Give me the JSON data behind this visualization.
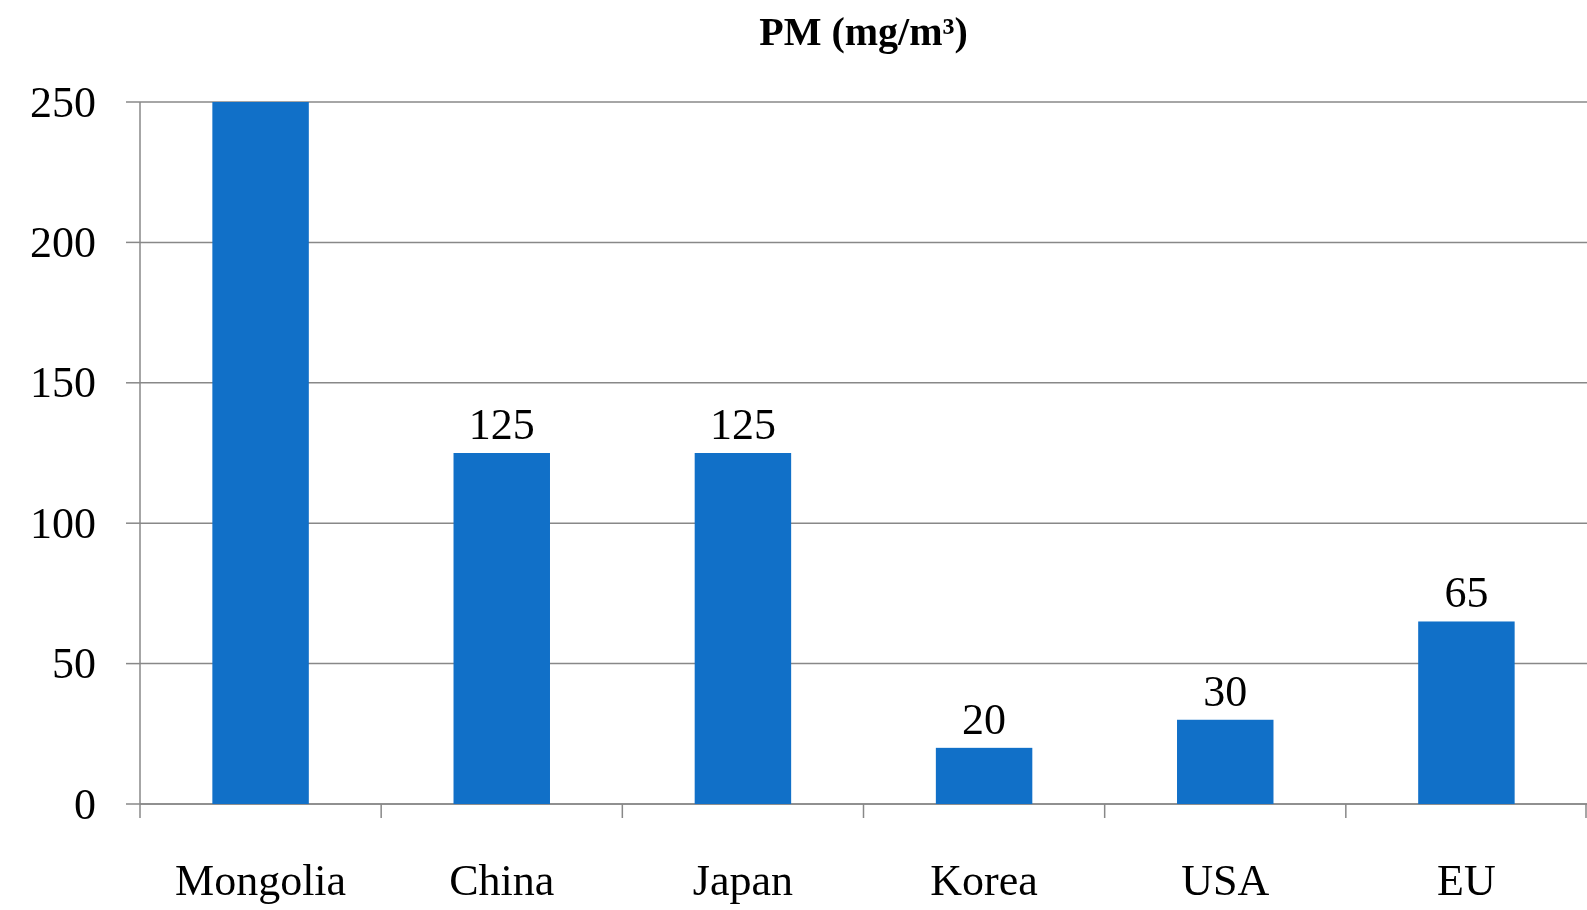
{
  "chart_data": {
    "type": "bar",
    "title": "PM (mg/m³)",
    "categories": [
      "Mongolia",
      "China",
      "Japan",
      "Korea",
      "USA",
      "EU"
    ],
    "values": [
      250,
      125,
      125,
      20,
      30,
      65
    ],
    "value_labels": [
      null,
      "125",
      "125",
      "20",
      "30",
      "65"
    ],
    "color": "#1170c8",
    "ylim": [
      0,
      250
    ],
    "yticks": [
      0,
      50,
      100,
      150,
      200,
      250
    ],
    "grid": "y"
  }
}
